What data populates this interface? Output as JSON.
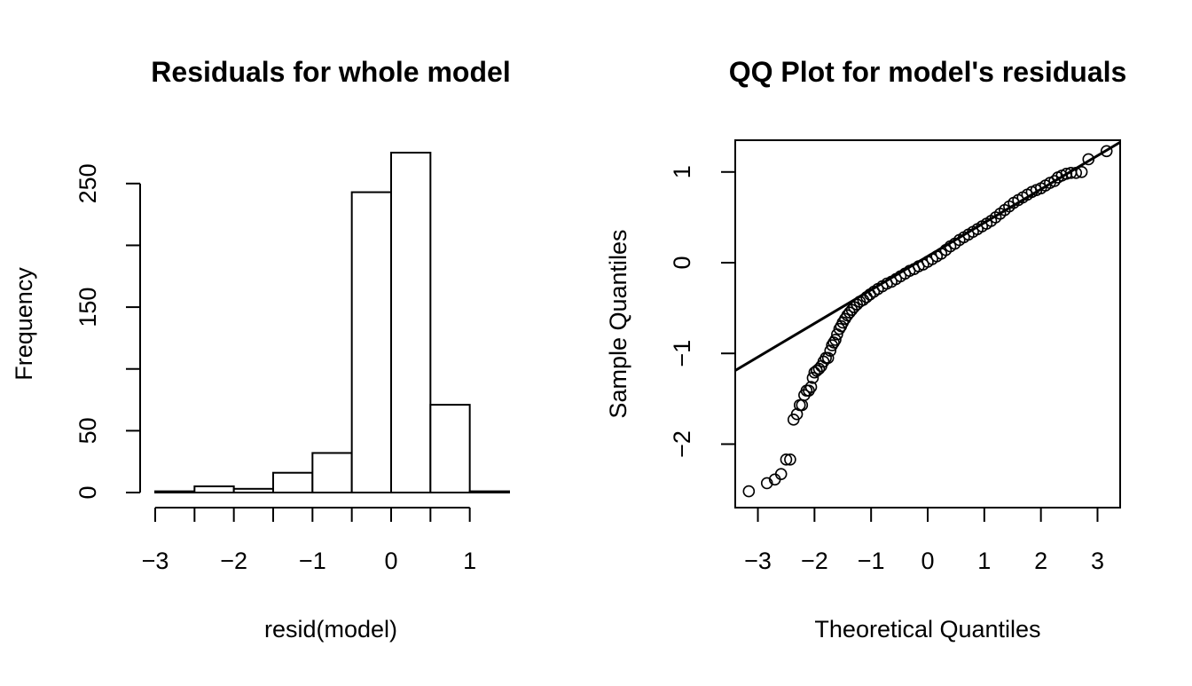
{
  "chart_data": [
    {
      "type": "bar",
      "title": "Residuals for whole model",
      "xlabel": "resid(model)",
      "ylabel": "Frequency",
      "xlim": [
        -3,
        1.5
      ],
      "ylim": [
        0,
        275
      ],
      "xticks": [
        -3,
        -2,
        -1,
        0,
        1
      ],
      "yticks": [
        0,
        50,
        150,
        250
      ],
      "bins": [
        {
          "from": -3.0,
          "to": -2.5,
          "count": 1
        },
        {
          "from": -2.5,
          "to": -2.0,
          "count": 5
        },
        {
          "from": -2.0,
          "to": -1.5,
          "count": 3
        },
        {
          "from": -1.5,
          "to": -1.0,
          "count": 16
        },
        {
          "from": -1.0,
          "to": -0.5,
          "count": 32
        },
        {
          "from": -0.5,
          "to": 0.0,
          "count": 243
        },
        {
          "from": 0.0,
          "to": 0.5,
          "count": 275
        },
        {
          "from": 0.5,
          "to": 1.0,
          "count": 71
        },
        {
          "from": 1.0,
          "to": 1.5,
          "count": 1
        }
      ]
    },
    {
      "type": "scatter",
      "title": "QQ Plot for model's residuals",
      "xlabel": "Theoretical Quantiles",
      "ylabel": "Sample Quantiles",
      "xlim": [
        -3.4,
        3.4
      ],
      "ylim": [
        -2.7,
        1.35
      ],
      "xticks": [
        -3,
        -2,
        -1,
        0,
        1,
        2,
        3
      ],
      "yticks": [
        -2,
        -1,
        0,
        1
      ],
      "reference_line": {
        "intercept": 0.07,
        "slope": 0.37
      },
      "points": [
        [
          -3.16,
          -2.52
        ],
        [
          -2.84,
          -2.43
        ],
        [
          -2.7,
          -2.39
        ],
        [
          -2.59,
          -2.33
        ],
        [
          -2.5,
          -2.17
        ],
        [
          -2.43,
          -2.17
        ],
        [
          -2.37,
          -1.73
        ],
        [
          -2.31,
          -1.67
        ],
        [
          -2.26,
          -1.57
        ],
        [
          -2.22,
          -1.57
        ],
        [
          -2.18,
          -1.46
        ],
        [
          -2.14,
          -1.41
        ],
        [
          -2.1,
          -1.41
        ],
        [
          -2.06,
          -1.37
        ],
        [
          -2.03,
          -1.27
        ],
        [
          -2.0,
          -1.21
        ],
        [
          -1.96,
          -1.19
        ],
        [
          -1.92,
          -1.17
        ],
        [
          -1.88,
          -1.14
        ],
        [
          -1.84,
          -1.09
        ],
        [
          -1.8,
          -1.05
        ],
        [
          -1.76,
          -1.05
        ],
        [
          -1.72,
          -0.97
        ],
        [
          -1.69,
          -0.91
        ],
        [
          -1.66,
          -0.88
        ],
        [
          -1.63,
          -0.85
        ],
        [
          -1.6,
          -0.79
        ],
        [
          -1.56,
          -0.73
        ],
        [
          -1.53,
          -0.7
        ],
        [
          -1.5,
          -0.66
        ],
        [
          -1.46,
          -0.62
        ],
        [
          -1.42,
          -0.58
        ],
        [
          -1.38,
          -0.55
        ],
        [
          -1.34,
          -0.52
        ],
        [
          -1.3,
          -0.49
        ],
        [
          -1.25,
          -0.46
        ],
        [
          -1.2,
          -0.43
        ],
        [
          -1.14,
          -0.41
        ],
        [
          -1.08,
          -0.38
        ],
        [
          -1.02,
          -0.35
        ],
        [
          -0.95,
          -0.32
        ],
        [
          -0.88,
          -0.29
        ],
        [
          -0.8,
          -0.26
        ],
        [
          -0.72,
          -0.23
        ],
        [
          -0.64,
          -0.21
        ],
        [
          -0.56,
          -0.18
        ],
        [
          -0.48,
          -0.15
        ],
        [
          -0.4,
          -0.12
        ],
        [
          -0.32,
          -0.09
        ],
        [
          -0.24,
          -0.07
        ],
        [
          -0.16,
          -0.04
        ],
        [
          -0.08,
          -0.02
        ],
        [
          0.0,
          0.01
        ],
        [
          0.08,
          0.04
        ],
        [
          0.16,
          0.07
        ],
        [
          0.24,
          0.1
        ],
        [
          0.32,
          0.14
        ],
        [
          0.4,
          0.18
        ],
        [
          0.48,
          0.21
        ],
        [
          0.56,
          0.25
        ],
        [
          0.64,
          0.28
        ],
        [
          0.72,
          0.31
        ],
        [
          0.8,
          0.34
        ],
        [
          0.88,
          0.37
        ],
        [
          0.96,
          0.4
        ],
        [
          1.04,
          0.43
        ],
        [
          1.12,
          0.46
        ],
        [
          1.2,
          0.5
        ],
        [
          1.28,
          0.54
        ],
        [
          1.36,
          0.58
        ],
        [
          1.44,
          0.62
        ],
        [
          1.52,
          0.66
        ],
        [
          1.6,
          0.69
        ],
        [
          1.68,
          0.72
        ],
        [
          1.76,
          0.75
        ],
        [
          1.84,
          0.78
        ],
        [
          1.92,
          0.8
        ],
        [
          2.0,
          0.82
        ],
        [
          2.08,
          0.85
        ],
        [
          2.16,
          0.88
        ],
        [
          2.24,
          0.9
        ],
        [
          2.3,
          0.94
        ],
        [
          2.37,
          0.96
        ],
        [
          2.45,
          0.98
        ],
        [
          2.53,
          0.99
        ],
        [
          2.62,
          0.99
        ],
        [
          2.72,
          1.0
        ],
        [
          2.84,
          1.14
        ],
        [
          3.16,
          1.23
        ]
      ]
    }
  ]
}
